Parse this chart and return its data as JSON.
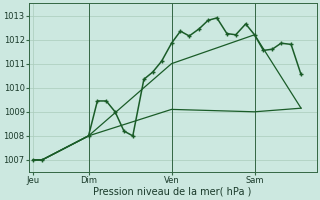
{
  "xlabel": "Pression niveau de la mer( hPa )",
  "bg_color": "#cce8e0",
  "grid_color": "#aaccbb",
  "line_color": "#1a5c28",
  "ylim": [
    1006.5,
    1013.5
  ],
  "yticks": [
    1007,
    1008,
    1009,
    1010,
    1011,
    1012,
    1013
  ],
  "day_labels": [
    "Jeu",
    "Dim",
    "Ven",
    "Sam"
  ],
  "day_positions": [
    0,
    0.25,
    0.625,
    1.0
  ],
  "vline_x": [
    0.0,
    0.25,
    0.625,
    1.0
  ],
  "line1_x": [
    0.0,
    0.04,
    0.25,
    0.29,
    0.33,
    0.37,
    0.41,
    0.45,
    0.5,
    0.54,
    0.58,
    0.625,
    0.665,
    0.705,
    0.75,
    0.79,
    0.83,
    0.875,
    0.915,
    0.96,
    1.0,
    1.04,
    1.08,
    1.12,
    1.165,
    1.21
  ],
  "line1_y": [
    1007.0,
    1007.0,
    1008.0,
    1009.45,
    1009.45,
    1009.0,
    1008.2,
    1008.0,
    1010.35,
    1010.65,
    1011.1,
    1011.85,
    1012.35,
    1012.15,
    1012.45,
    1012.8,
    1012.9,
    1012.25,
    1012.2,
    1012.65,
    1012.2,
    1011.55,
    1011.6,
    1011.85,
    1011.8,
    1010.55
  ],
  "line2_x": [
    0.0,
    0.04,
    0.25,
    0.625,
    1.0,
    1.21
  ],
  "line2_y": [
    1007.0,
    1007.0,
    1008.0,
    1011.0,
    1012.2,
    1009.15
  ],
  "line3_x": [
    0.0,
    0.04,
    0.25,
    0.625,
    1.0,
    1.21
  ],
  "line3_y": [
    1007.0,
    1007.0,
    1008.0,
    1009.1,
    1009.0,
    1009.15
  ],
  "vline_positions": [
    0.25,
    0.625,
    1.0
  ]
}
